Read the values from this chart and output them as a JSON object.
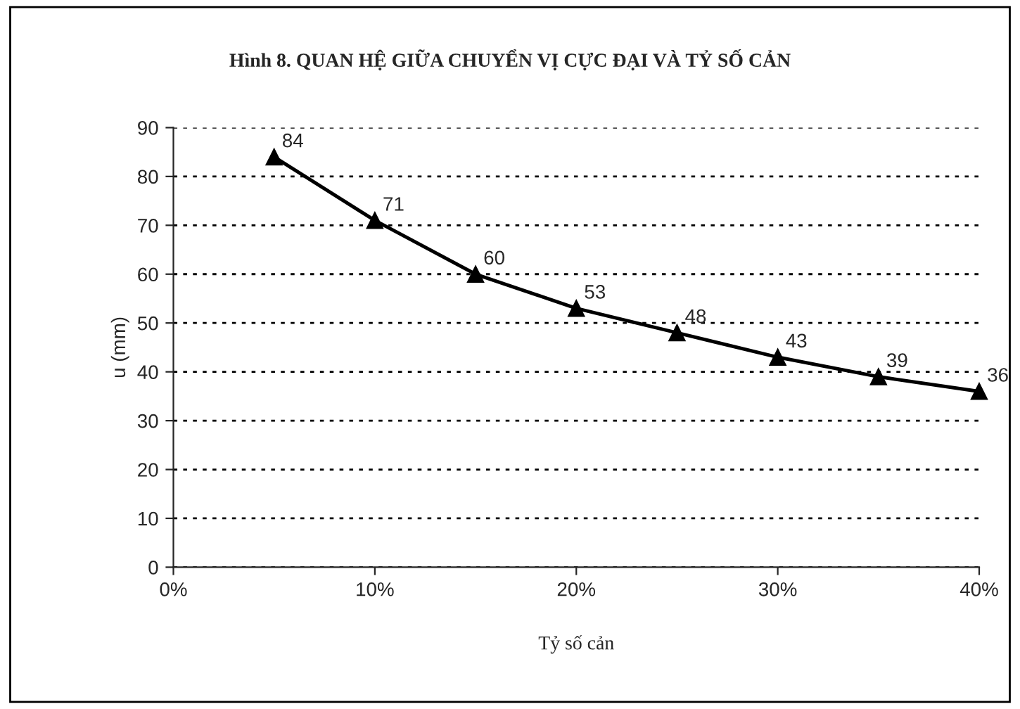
{
  "chart_data": {
    "type": "line",
    "title": "Hình 8. QUAN HỆ GIỮA CHUYỂN VỊ CỰC ĐẠI VÀ TỶ SỐ CẢN",
    "xlabel": "Tỷ số cản",
    "ylabel": "u (mm)",
    "x": [
      5,
      10,
      15,
      20,
      25,
      30,
      35,
      40
    ],
    "series": [
      {
        "color": "#000000",
        "values": [
          84,
          71,
          60,
          53,
          48,
          43,
          39,
          36
        ]
      }
    ],
    "xlim": [
      0,
      40
    ],
    "xticks": [
      {
        "value": 0,
        "label": "0%"
      },
      {
        "value": 10,
        "label": "10%"
      },
      {
        "value": 20,
        "label": "20%"
      },
      {
        "value": 30,
        "label": "30%"
      },
      {
        "value": 40,
        "label": "40%"
      }
    ],
    "ylim": [
      0,
      90
    ],
    "yticks": [
      0,
      10,
      20,
      30,
      40,
      50,
      60,
      70,
      80,
      90
    ],
    "grid": "y",
    "marker": "triangle",
    "line_style": "solid",
    "data_labels": true
  }
}
